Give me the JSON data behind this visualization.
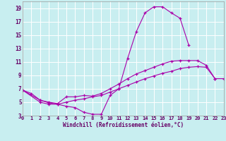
{
  "background_color": "#c8eef0",
  "grid_color": "#ffffff",
  "line_color": "#aa00aa",
  "xlabel": "Windchill (Refroidissement éolien,°C)",
  "xlabel_color": "#660066",
  "tick_color": "#660066",
  "xlim": [
    0,
    23
  ],
  "ylim": [
    3,
    20
  ],
  "yticks": [
    3,
    5,
    7,
    9,
    11,
    13,
    15,
    17,
    19
  ],
  "xticks": [
    0,
    1,
    2,
    3,
    4,
    5,
    6,
    7,
    8,
    9,
    10,
    11,
    12,
    13,
    14,
    15,
    16,
    17,
    18,
    19,
    20,
    21,
    22,
    23
  ],
  "c1_x": [
    0,
    1,
    2,
    3,
    4,
    5,
    6,
    7,
    8,
    9,
    10,
    11,
    12,
    13,
    14,
    15,
    16,
    17,
    18,
    19
  ],
  "c1_y": [
    6.8,
    6.3,
    5.3,
    4.9,
    4.7,
    4.4,
    4.2,
    3.5,
    3.2,
    3.2,
    6.0,
    7.0,
    11.5,
    15.5,
    18.3,
    19.2,
    19.2,
    18.3,
    17.5,
    13.5
  ],
  "c2_x": [
    0,
    2,
    3,
    4,
    5,
    6,
    7,
    8,
    9,
    10,
    11,
    12,
    13,
    14,
    15,
    16,
    17,
    18,
    19,
    20,
    21,
    22
  ],
  "c2_y": [
    6.8,
    5.3,
    5.0,
    4.8,
    5.8,
    5.8,
    6.0,
    5.9,
    6.3,
    7.0,
    7.7,
    8.5,
    9.2,
    9.7,
    10.2,
    10.7,
    11.1,
    11.2,
    11.2,
    11.2,
    10.5,
    8.5
  ],
  "c3_x": [
    0,
    2,
    3,
    4,
    5,
    6,
    7,
    8,
    9,
    10,
    11,
    12,
    13,
    14,
    15,
    16,
    17,
    18,
    19,
    20,
    21,
    22,
    23
  ],
  "c3_y": [
    6.8,
    5.0,
    4.7,
    4.7,
    5.0,
    5.3,
    5.5,
    5.8,
    6.0,
    6.5,
    7.0,
    7.5,
    8.0,
    8.5,
    8.9,
    9.3,
    9.6,
    10.0,
    10.2,
    10.3,
    10.2,
    8.5,
    8.5
  ]
}
